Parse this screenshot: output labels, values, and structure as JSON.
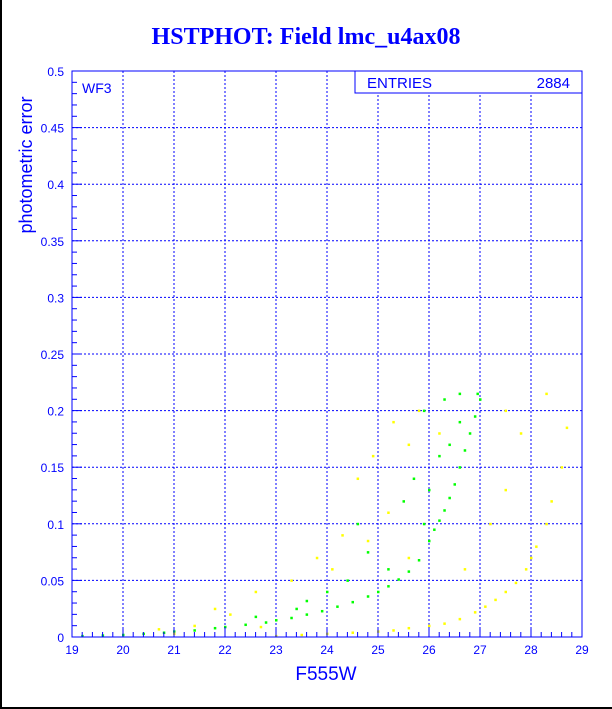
{
  "chart_data": {
    "type": "scatter",
    "title": "HSTPHOT: Field lmc_u4ax08",
    "xlabel": "F555W",
    "ylabel": "photometric error",
    "xlim": [
      19,
      29
    ],
    "ylim": [
      0,
      0.5
    ],
    "xticks": [
      "19",
      "20",
      "21",
      "22",
      "23",
      "24",
      "25",
      "26",
      "27",
      "28",
      "29"
    ],
    "yticks": [
      "0",
      "0.05",
      "0.1",
      "0.15",
      "0.2",
      "0.25",
      "0.3",
      "0.35",
      "0.4",
      "0.45",
      "0.5"
    ],
    "grid": true,
    "annotation": "WF3",
    "stats_box": {
      "label": "ENTRIES",
      "value": "2884"
    },
    "series": [
      {
        "name": "green",
        "color": "#00ff00",
        "points": [
          [
            19.2,
            0.001
          ],
          [
            19.6,
            0.0015
          ],
          [
            20,
            0.002
          ],
          [
            20.4,
            0.003
          ],
          [
            20.8,
            0.004
          ],
          [
            21,
            0.005
          ],
          [
            21.4,
            0.006
          ],
          [
            21.8,
            0.008
          ],
          [
            22,
            0.009
          ],
          [
            22.4,
            0.011
          ],
          [
            22.8,
            0.013
          ],
          [
            23,
            0.015
          ],
          [
            23.3,
            0.017
          ],
          [
            23.6,
            0.02
          ],
          [
            23.9,
            0.023
          ],
          [
            24.2,
            0.027
          ],
          [
            24.5,
            0.031
          ],
          [
            24.8,
            0.036
          ],
          [
            25,
            0.04
          ],
          [
            25.2,
            0.045
          ],
          [
            25.4,
            0.051
          ],
          [
            25.6,
            0.058
          ],
          [
            25.8,
            0.068
          ],
          [
            26,
            0.085
          ],
          [
            26.1,
            0.095
          ],
          [
            26.2,
            0.103
          ],
          [
            26.3,
            0.112
          ],
          [
            26.4,
            0.123
          ],
          [
            26.5,
            0.135
          ],
          [
            26.6,
            0.15
          ],
          [
            26.7,
            0.165
          ],
          [
            26.8,
            0.18
          ],
          [
            26.9,
            0.195
          ],
          [
            27,
            0.21
          ],
          [
            26.95,
            0.215
          ],
          [
            26.6,
            0.215
          ],
          [
            26.3,
            0.21
          ],
          [
            25.9,
            0.2
          ],
          [
            26.2,
            0.16
          ],
          [
            25.7,
            0.14
          ],
          [
            24.6,
            0.1
          ],
          [
            24.8,
            0.075
          ],
          [
            25.5,
            0.12
          ],
          [
            26,
            0.13
          ],
          [
            24,
            0.04
          ],
          [
            23.6,
            0.032
          ],
          [
            25.2,
            0.06
          ],
          [
            24.4,
            0.05
          ],
          [
            23.4,
            0.025
          ],
          [
            22.6,
            0.018
          ],
          [
            25.9,
            0.1
          ],
          [
            26.4,
            0.17
          ],
          [
            26.6,
            0.19
          ]
        ]
      },
      {
        "name": "yellow",
        "color": "#ffff00",
        "points": [
          [
            23,
            0.001
          ],
          [
            23.5,
            0.002
          ],
          [
            24,
            0.003
          ],
          [
            24.5,
            0.004
          ],
          [
            25,
            0.005
          ],
          [
            25.3,
            0.006
          ],
          [
            25.6,
            0.008
          ],
          [
            26,
            0.01
          ],
          [
            26.3,
            0.012
          ],
          [
            26.6,
            0.016
          ],
          [
            26.9,
            0.022
          ],
          [
            27.1,
            0.027
          ],
          [
            27.3,
            0.033
          ],
          [
            27.5,
            0.04
          ],
          [
            27.7,
            0.048
          ],
          [
            27.9,
            0.06
          ],
          [
            28,
            0.07
          ],
          [
            28.1,
            0.08
          ],
          [
            28.3,
            0.1
          ],
          [
            28.4,
            0.12
          ],
          [
            28.6,
            0.15
          ],
          [
            28.7,
            0.185
          ],
          [
            28.3,
            0.215
          ],
          [
            27.8,
            0.18
          ],
          [
            27.5,
            0.13
          ],
          [
            27.2,
            0.1
          ],
          [
            25.8,
            0.2
          ],
          [
            25.3,
            0.19
          ],
          [
            25.6,
            0.17
          ],
          [
            24.9,
            0.16
          ],
          [
            24.6,
            0.14
          ],
          [
            25.2,
            0.11
          ],
          [
            24.3,
            0.09
          ],
          [
            23.8,
            0.07
          ],
          [
            24.1,
            0.06
          ],
          [
            22.6,
            0.04
          ],
          [
            21.8,
            0.025
          ],
          [
            22.1,
            0.02
          ],
          [
            21.4,
            0.01
          ],
          [
            20.7,
            0.007
          ],
          [
            23.3,
            0.05
          ],
          [
            26.2,
            0.18
          ],
          [
            27.5,
            0.2
          ],
          [
            24.8,
            0.085
          ],
          [
            25.6,
            0.07
          ],
          [
            26.7,
            0.06
          ],
          [
            21,
            0.003
          ],
          [
            22.7,
            0.009
          ]
        ]
      }
    ]
  }
}
